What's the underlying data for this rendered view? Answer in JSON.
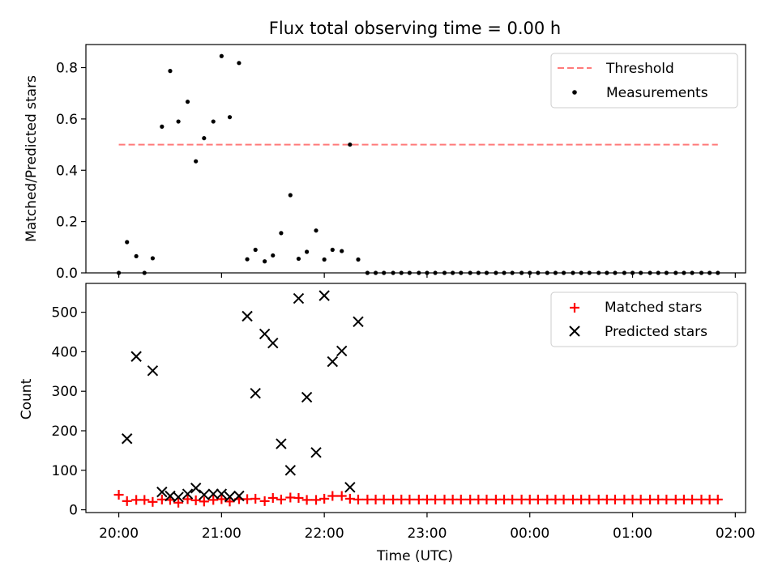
{
  "figure": {
    "title": "Flux total observing time = 0.00 h",
    "xlabel": "Time (UTC)",
    "xticks": [
      "20:00",
      "21:00",
      "22:00",
      "23:00",
      "00:00",
      "01:00",
      "02:00"
    ]
  },
  "chart_data": [
    {
      "type": "scatter",
      "title": "Flux total observing time = 0.00 h",
      "ylabel": "Matched/Predicted stars",
      "xlabel": "",
      "x_unit": "hours after 20:00 UTC",
      "xlim": [
        -0.32,
        6.1
      ],
      "ylim": [
        0,
        0.89
      ],
      "yticks": [
        "0.0",
        "0.2",
        "0.4",
        "0.6",
        "0.8"
      ],
      "ytick_values": [
        0,
        0.2,
        0.4,
        0.6,
        0.8
      ],
      "legend": "top-right",
      "legend_labels": [
        "Threshold",
        "Measurements"
      ],
      "threshold": {
        "name": "Threshold",
        "y": 0.5,
        "x_range": [
          0,
          5.83
        ],
        "color": "#ff7a7a"
      },
      "series": [
        {
          "name": "Measurements",
          "color": "#000000",
          "x": [
            0.0,
            0.08,
            0.17,
            0.25,
            0.33,
            0.42,
            0.5,
            0.58,
            0.67,
            0.75,
            0.83,
            0.92,
            1.0,
            1.08,
            1.17,
            1.25,
            1.33,
            1.42,
            1.5,
            1.58,
            1.67,
            1.75,
            1.83,
            1.92,
            2.0,
            2.08,
            2.17,
            2.25,
            2.33,
            2.42,
            2.5,
            2.58,
            2.67,
            2.75,
            2.83,
            2.92,
            3.0,
            3.08,
            3.17,
            3.25,
            3.33,
            3.42,
            3.5,
            3.58,
            3.67,
            3.75,
            3.83,
            3.92,
            4.0,
            4.08,
            4.17,
            4.25,
            4.33,
            4.42,
            4.5,
            4.58,
            4.67,
            4.75,
            4.83,
            4.92,
            5.0,
            5.08,
            5.17,
            5.25,
            5.33,
            5.42,
            5.5,
            5.58,
            5.67,
            5.75,
            5.83
          ],
          "y": [
            0.0,
            0.12,
            0.065,
            0.0,
            0.057,
            0.57,
            0.787,
            0.59,
            0.667,
            0.435,
            0.525,
            0.59,
            0.845,
            0.607,
            0.818,
            0.053,
            0.09,
            0.045,
            0.068,
            0.155,
            0.303,
            0.055,
            0.082,
            0.165,
            0.052,
            0.09,
            0.085,
            0.5,
            0.052,
            0.0,
            0.0,
            0.0,
            0.0,
            0.0,
            0.0,
            0.0,
            0.0,
            0.0,
            0.0,
            0.0,
            0.0,
            0.0,
            0.0,
            0.0,
            0.0,
            0.0,
            0.0,
            0.0,
            0.0,
            0.0,
            0.0,
            0.0,
            0.0,
            0.0,
            0.0,
            0.0,
            0.0,
            0.0,
            0.0,
            0.0,
            0.0,
            0.0,
            0.0,
            0.0,
            0.0,
            0.0,
            0.0,
            0.0,
            0.0,
            0.0,
            0.0
          ]
        }
      ]
    },
    {
      "type": "scatter",
      "ylabel": "Count",
      "xlabel": "Time (UTC)",
      "x_unit": "hours after 20:00 UTC",
      "xlim": [
        -0.32,
        6.1
      ],
      "ylim": [
        -7,
        573
      ],
      "yticks": [
        "0",
        "100",
        "200",
        "300",
        "400",
        "500"
      ],
      "ytick_values": [
        0,
        100,
        200,
        300,
        400,
        500
      ],
      "legend": "top-right",
      "legend_labels": [
        "Matched stars",
        "Predicted stars"
      ],
      "series": [
        {
          "name": "Matched stars",
          "marker": "plus",
          "color": "#ff0000",
          "x": [
            0.0,
            0.08,
            0.17,
            0.25,
            0.33,
            0.42,
            0.5,
            0.58,
            0.67,
            0.75,
            0.83,
            0.92,
            1.0,
            1.08,
            1.17,
            1.25,
            1.33,
            1.42,
            1.5,
            1.58,
            1.67,
            1.75,
            1.83,
            1.92,
            2.0,
            2.08,
            2.17,
            2.25,
            2.33,
            2.42,
            2.5,
            2.58,
            2.67,
            2.75,
            2.83,
            2.92,
            3.0,
            3.08,
            3.17,
            3.25,
            3.33,
            3.42,
            3.5,
            3.58,
            3.67,
            3.75,
            3.83,
            3.92,
            4.0,
            4.08,
            4.17,
            4.25,
            4.33,
            4.42,
            4.5,
            4.58,
            4.67,
            4.75,
            4.83,
            4.92,
            5.0,
            5.08,
            5.17,
            5.25,
            5.33,
            5.42,
            5.5,
            5.58,
            5.67,
            5.75,
            5.83
          ],
          "y": [
            38,
            22,
            25,
            25,
            20,
            26,
            25,
            18,
            27,
            24,
            21,
            25,
            27,
            21,
            27,
            27,
            28,
            22,
            30,
            26,
            31,
            30,
            25,
            25,
            28,
            35,
            35,
            28,
            26,
            26,
            26,
            26,
            26,
            26,
            26,
            26,
            26,
            26,
            26,
            26,
            26,
            26,
            26,
            26,
            26,
            26,
            26,
            26,
            26,
            26,
            26,
            26,
            26,
            26,
            26,
            26,
            26,
            26,
            26,
            26,
            26,
            26,
            26,
            26,
            26,
            26,
            26,
            26,
            26,
            26,
            26
          ]
        },
        {
          "name": "Predicted stars",
          "marker": "x",
          "color": "#000000",
          "x": [
            0.08,
            0.17,
            0.33,
            0.42,
            0.5,
            0.58,
            0.67,
            0.75,
            0.83,
            0.92,
            1.0,
            1.08,
            1.17,
            1.25,
            1.33,
            1.42,
            1.5,
            1.58,
            1.67,
            1.75,
            1.83,
            1.92,
            2.0,
            2.08,
            2.17,
            2.25,
            2.33
          ],
          "y": [
            180,
            388,
            352,
            45,
            35,
            32,
            40,
            55,
            38,
            40,
            40,
            33,
            35,
            490,
            295,
            445,
            422,
            167,
            100,
            535,
            285,
            145,
            542,
            375,
            402,
            57,
            476
          ]
        }
      ]
    }
  ]
}
